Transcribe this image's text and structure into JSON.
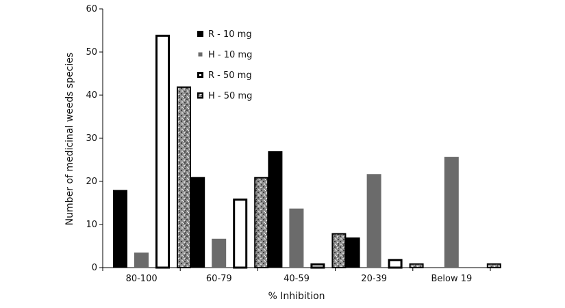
{
  "chart_data": {
    "type": "bar",
    "title": "",
    "xlabel": "% Inhibition",
    "ylabel": "Number of medicinal weeds species",
    "ylim": [
      0,
      60
    ],
    "yticks": [
      0,
      10,
      20,
      30,
      40,
      50,
      60
    ],
    "categories": [
      "80-100",
      "60-79",
      "40-59",
      "20-39",
      "Below 19"
    ],
    "legend_position": "top-center",
    "grid": false,
    "series": [
      {
        "name": "R - 10 mg",
        "values": [
          18,
          21,
          27,
          7,
          0
        ],
        "style": "solid-black"
      },
      {
        "name": "H - 10 mg",
        "values": [
          3.5,
          6.7,
          13.7,
          21.7,
          25.7
        ],
        "style": "solid-gray"
      },
      {
        "name": "R - 50 mg",
        "values": [
          54,
          16,
          1,
          2,
          0
        ],
        "style": "white-outline"
      },
      {
        "name": "H - 50 mg",
        "values": [
          42,
          21,
          8,
          1,
          1
        ],
        "style": "speckled-gray"
      }
    ]
  }
}
